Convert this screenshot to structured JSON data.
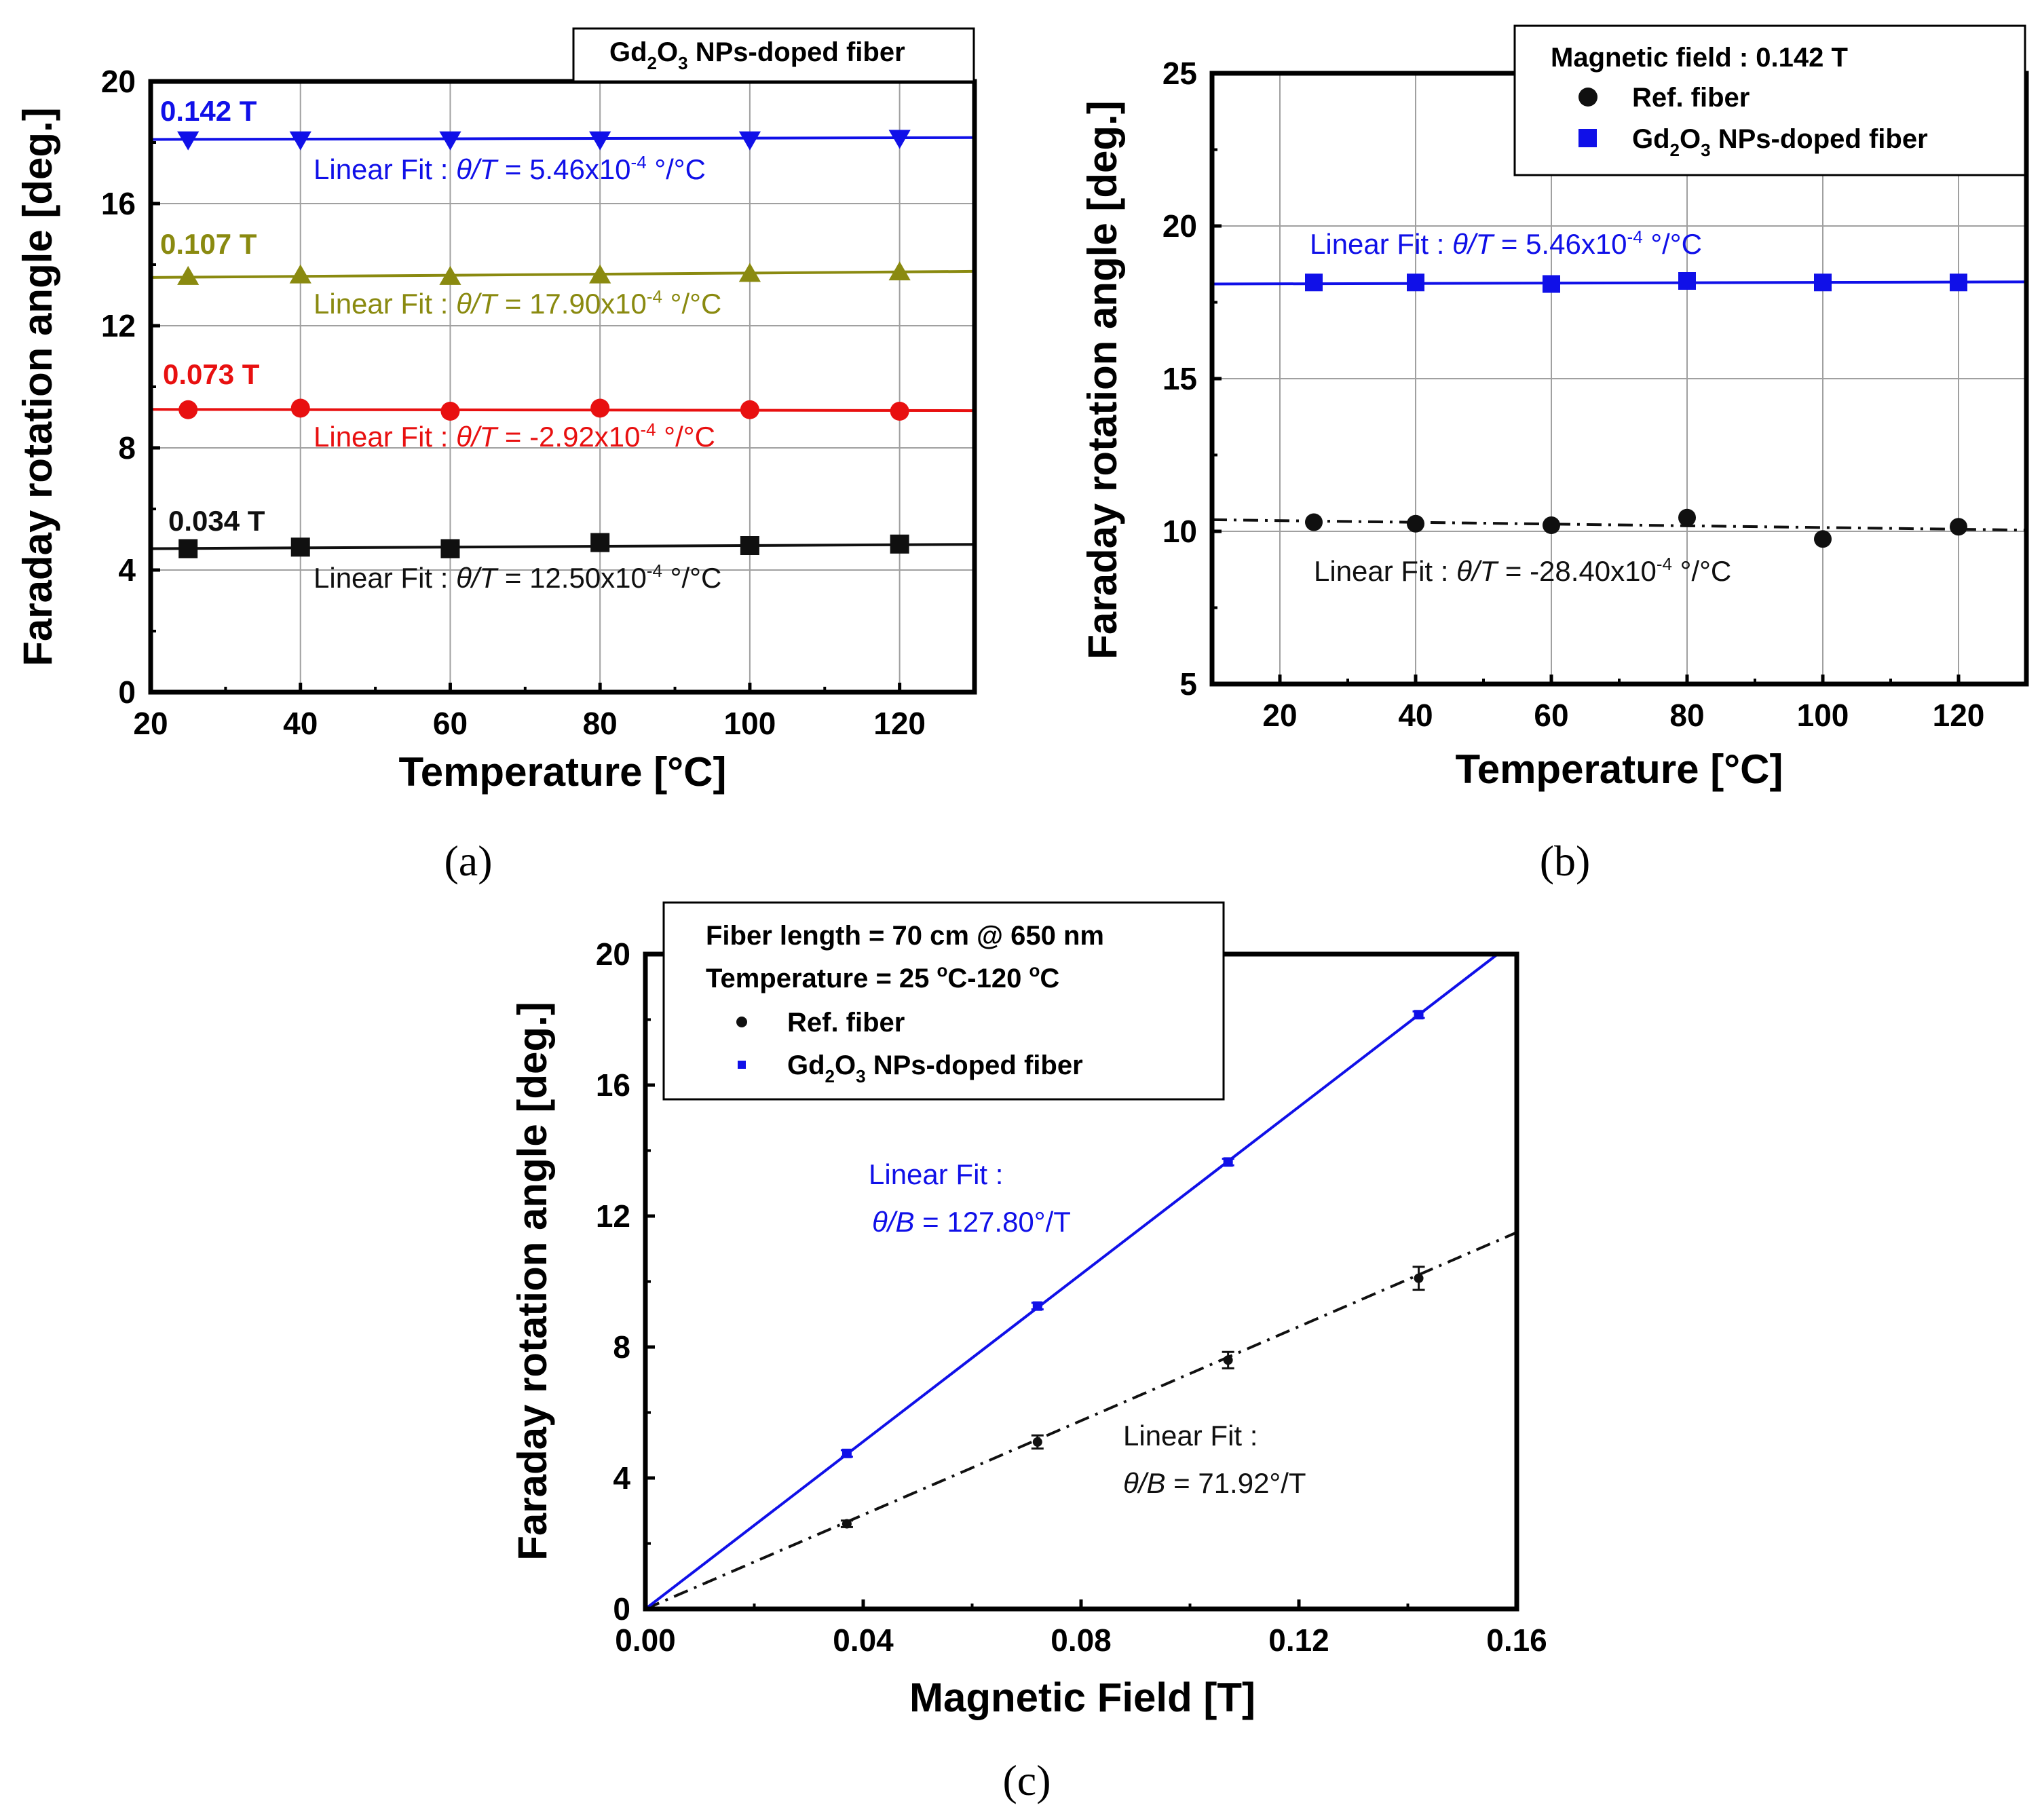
{
  "chart_data": [
    {
      "panel": "a",
      "panel_label": "(a)",
      "type": "scatter",
      "xlabel": "Temperature [°C]",
      "ylabel": "Faraday rotation angle [deg.]",
      "xlim": [
        20,
        130
      ],
      "ylim": [
        0,
        20
      ],
      "xticks": [
        20,
        40,
        60,
        80,
        100,
        120
      ],
      "yticks": [
        0,
        4,
        8,
        12,
        16,
        20
      ],
      "grid": true,
      "legend": {
        "placement": "top-right",
        "text": "Gd2O3 NPs-doped fiber"
      },
      "series": [
        {
          "name": "0.142 T",
          "label": "0.142 T",
          "color": "#1010e8",
          "marker": "triangle-down",
          "x": [
            25,
            40,
            60,
            80,
            100,
            120
          ],
          "y": [
            18.1,
            18.1,
            18.1,
            18.1,
            18.1,
            18.15
          ],
          "fit_text": "Linear Fit : θ/T = 5.46x10-4 °/°C",
          "fit_line": [
            [
              20,
              18.1
            ],
            [
              130,
              18.16
            ]
          ]
        },
        {
          "name": "0.107 T",
          "label": "0.107 T",
          "color": "#8a8a10",
          "marker": "triangle-up",
          "x": [
            25,
            40,
            60,
            80,
            100,
            120
          ],
          "y": [
            13.6,
            13.65,
            13.6,
            13.65,
            13.7,
            13.75
          ],
          "fit_text": "Linear Fit : θ/T = 17.90x10-4 °/°C",
          "fit_line": [
            [
              20,
              13.58
            ],
            [
              130,
              13.78
            ]
          ]
        },
        {
          "name": "0.073 T",
          "label": "0.073 T",
          "color": "#e81010",
          "marker": "circle",
          "x": [
            25,
            40,
            60,
            80,
            100,
            120
          ],
          "y": [
            9.25,
            9.3,
            9.2,
            9.3,
            9.25,
            9.2
          ],
          "fit_text": "Linear Fit : θ/T = -2.92x10-4 °/°C",
          "fit_line": [
            [
              20,
              9.26
            ],
            [
              130,
              9.22
            ]
          ]
        },
        {
          "name": "0.034 T",
          "label": "0.034 T",
          "color": "#101010",
          "marker": "square",
          "x": [
            25,
            40,
            60,
            80,
            100,
            120
          ],
          "y": [
            4.7,
            4.75,
            4.7,
            4.9,
            4.8,
            4.85
          ],
          "fit_text": "Linear Fit : θ/T = 12.50x10-4 °/°C",
          "fit_line": [
            [
              20,
              4.7
            ],
            [
              130,
              4.84
            ]
          ]
        }
      ]
    },
    {
      "panel": "b",
      "panel_label": "(b)",
      "type": "scatter",
      "xlabel": "Temperature [°C]",
      "ylabel": "Faraday rotation angle [deg.]",
      "xlim": [
        10,
        130
      ],
      "ylim": [
        5,
        25
      ],
      "xticks": [
        20,
        40,
        60,
        80,
        100,
        120
      ],
      "yticks": [
        5,
        10,
        15,
        20,
        25
      ],
      "grid": true,
      "legend": {
        "placement": "top-right",
        "title": "Magnetic field : 0.142 T",
        "entries": [
          "Ref. fiber",
          "Gd2O3 NPs-doped fiber"
        ]
      },
      "series": [
        {
          "name": "Ref. fiber",
          "color": "#101010",
          "marker": "circle",
          "x": [
            25,
            40,
            60,
            80,
            100,
            120
          ],
          "y": [
            10.3,
            10.25,
            10.2,
            10.45,
            9.75,
            10.15
          ],
          "fit_text": "Linear Fit : θ/T = -28.40x10-4 °/°C",
          "fit_line": [
            [
              10,
              10.38
            ],
            [
              130,
              10.04
            ]
          ],
          "fit_style": "dash-dot"
        },
        {
          "name": "Gd2O3 NPs-doped fiber",
          "color": "#1010e8",
          "marker": "square",
          "x": [
            25,
            40,
            60,
            80,
            100,
            120
          ],
          "y": [
            18.15,
            18.15,
            18.1,
            18.2,
            18.15,
            18.15
          ],
          "fit_text": "Linear Fit : θ/T = 5.46x10-4 °/°C",
          "fit_line": [
            [
              10,
              18.1
            ],
            [
              130,
              18.17
            ]
          ],
          "fit_style": "solid"
        }
      ]
    },
    {
      "panel": "c",
      "panel_label": "(c)",
      "type": "scatter",
      "xlabel": "Magnetic Field [T]",
      "ylabel": "Faraday rotation angle [deg.]",
      "xlim": [
        0,
        0.16
      ],
      "ylim": [
        0,
        20
      ],
      "xticks": [
        "0.00",
        "0.04",
        "0.08",
        "0.12",
        "0.16"
      ],
      "yticks": [
        0,
        4,
        8,
        12,
        16,
        20
      ],
      "grid": false,
      "legend": {
        "placement": "top-left",
        "lines": [
          "Fiber length = 70 cm @ 650 nm",
          "Temperature = 25 °C-120 °C"
        ],
        "entries": [
          "Ref. fiber",
          "Gd2O3 NPs-doped fiber"
        ]
      },
      "series": [
        {
          "name": "Ref. fiber",
          "color": "#101010",
          "marker": "circle",
          "x": [
            0.037,
            0.072,
            0.107,
            0.142
          ],
          "y": [
            2.6,
            5.1,
            7.6,
            10.1
          ],
          "err": [
            0.1,
            0.2,
            0.25,
            0.35
          ],
          "fit_text_line1": "Linear Fit :",
          "fit_text_line2": "θ/B = 71.92°/T",
          "fit_line": [
            [
              0,
              0
            ],
            [
              0.16,
              11.5
            ]
          ],
          "fit_style": "dash-dot"
        },
        {
          "name": "Gd2O3 NPs-doped fiber",
          "color": "#1010e8",
          "marker": "square",
          "x": [
            0.037,
            0.072,
            0.107,
            0.142
          ],
          "y": [
            4.75,
            9.25,
            13.65,
            18.15
          ],
          "err": [
            0.1,
            0.1,
            0.1,
            0.1
          ],
          "fit_text_line1": "Linear Fit :",
          "fit_text_line2": "θ/B = 127.80°/T",
          "fit_line": [
            [
              0,
              0
            ],
            [
              0.1565,
              20
            ]
          ],
          "fit_style": "solid"
        }
      ]
    }
  ]
}
